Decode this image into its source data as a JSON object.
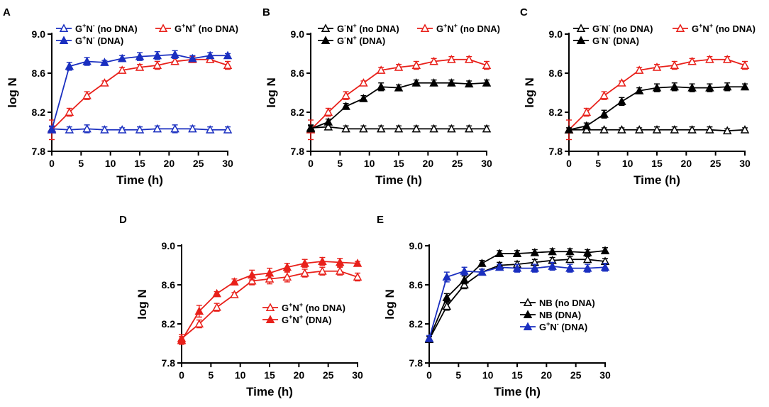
{
  "figure": {
    "panels": [
      "A",
      "B",
      "C",
      "D",
      "E"
    ]
  },
  "colors": {
    "blue": "#1a2fc0",
    "red": "#e8201a",
    "black": "#000000"
  },
  "chart_data": [
    {
      "panel": "A",
      "type": "line",
      "xlabel": "Time (h)",
      "ylabel": "log N",
      "xlim": [
        0,
        30
      ],
      "ylim": [
        7.8,
        9.0
      ],
      "xticks": [
        "0",
        "5",
        "10",
        "15",
        "20",
        "25",
        "30"
      ],
      "yticks": [
        "7.8",
        "8.2",
        "8.6",
        "9.0"
      ],
      "legend_position": "top",
      "x": [
        0,
        3,
        6,
        9,
        12,
        15,
        18,
        21,
        24,
        27,
        30
      ],
      "series": [
        {
          "name": "G+N- (no DNA)",
          "main": "G",
          "sup1": "+",
          "mid": "N",
          "sup2": "-",
          "suffix": " (no DNA)",
          "color": "#1a2fc0",
          "marker": "open-triangle",
          "values": [
            8.03,
            8.02,
            8.03,
            8.02,
            8.02,
            8.02,
            8.03,
            8.03,
            8.03,
            8.02,
            8.02
          ],
          "errors": [
            0.03,
            0.03,
            0.04,
            0.03,
            0.02,
            0.03,
            0.03,
            0.04,
            0.03,
            0.03,
            0.03
          ]
        },
        {
          "name": "G+N+ (no DNA)",
          "main": "G",
          "sup1": "+",
          "mid": "N",
          "sup2": "+",
          "suffix": " (no DNA)",
          "color": "#e8201a",
          "marker": "open-triangle",
          "values": [
            8.02,
            8.2,
            8.37,
            8.5,
            8.63,
            8.66,
            8.68,
            8.72,
            8.74,
            8.74,
            8.68
          ],
          "errors": [
            0.1,
            0.04,
            0.04,
            0.02,
            0.03,
            0.03,
            0.04,
            0.03,
            0.03,
            0.03,
            0.04
          ]
        },
        {
          "name": "G+N- (DNA)",
          "main": "G",
          "sup1": "+",
          "mid": "N",
          "sup2": "-",
          "suffix": " (DNA)",
          "color": "#1a2fc0",
          "marker": "filled-triangle",
          "values": [
            8.02,
            8.67,
            8.72,
            8.71,
            8.75,
            8.77,
            8.78,
            8.79,
            8.75,
            8.78,
            8.78
          ],
          "errors": [
            0.03,
            0.04,
            0.04,
            0.02,
            0.03,
            0.04,
            0.04,
            0.04,
            0.03,
            0.03,
            0.02
          ]
        }
      ]
    },
    {
      "panel": "B",
      "type": "line",
      "xlabel": "Time (h)",
      "ylabel": "log N",
      "xlim": [
        0,
        30
      ],
      "ylim": [
        7.8,
        9.0
      ],
      "xticks": [
        "0",
        "5",
        "10",
        "15",
        "20",
        "25",
        "30"
      ],
      "yticks": [
        "7.8",
        "8.2",
        "8.6",
        "9.0"
      ],
      "legend_position": "top",
      "x": [
        0,
        3,
        6,
        9,
        12,
        15,
        18,
        21,
        24,
        27,
        30
      ],
      "series": [
        {
          "name": "G-N+ (no DNA)",
          "main": "G",
          "sup1": "-",
          "mid": "N",
          "sup2": "+",
          "suffix": " (no DNA)",
          "color": "#000000",
          "marker": "open-triangle",
          "values": [
            8.04,
            8.05,
            8.03,
            8.03,
            8.03,
            8.03,
            8.03,
            8.03,
            8.03,
            8.03,
            8.03
          ],
          "errors": [
            0.03,
            0.03,
            0.03,
            0.03,
            0.03,
            0.03,
            0.03,
            0.03,
            0.03,
            0.03,
            0.03
          ]
        },
        {
          "name": "G+N+ (no DNA)",
          "main": "G",
          "sup1": "+",
          "mid": "N",
          "sup2": "+",
          "suffix": " (no DNA)",
          "color": "#e8201a",
          "marker": "open-triangle",
          "values": [
            8.02,
            8.2,
            8.37,
            8.5,
            8.63,
            8.66,
            8.68,
            8.72,
            8.74,
            8.74,
            8.68
          ],
          "errors": [
            0.1,
            0.04,
            0.04,
            0.02,
            0.03,
            0.03,
            0.04,
            0.03,
            0.03,
            0.03,
            0.04
          ]
        },
        {
          "name": "G-N+ (DNA)",
          "main": "G",
          "sup1": "-",
          "mid": "N",
          "sup2": "+",
          "suffix": " (DNA)",
          "color": "#000000",
          "marker": "filled-triangle",
          "values": [
            8.03,
            8.1,
            8.26,
            8.34,
            8.46,
            8.45,
            8.5,
            8.5,
            8.5,
            8.49,
            8.5
          ],
          "errors": [
            0.03,
            0.03,
            0.03,
            0.03,
            0.04,
            0.03,
            0.03,
            0.03,
            0.03,
            0.03,
            0.03
          ]
        }
      ]
    },
    {
      "panel": "C",
      "type": "line",
      "xlabel": "Time (h)",
      "ylabel": "log N",
      "xlim": [
        0,
        30
      ],
      "ylim": [
        7.8,
        9.0
      ],
      "xticks": [
        "0",
        "5",
        "10",
        "15",
        "20",
        "25",
        "30"
      ],
      "yticks": [
        "7.8",
        "8.2",
        "8.6",
        "9.0"
      ],
      "legend_position": "top",
      "x": [
        0,
        3,
        6,
        9,
        12,
        15,
        18,
        21,
        24,
        27,
        30
      ],
      "series": [
        {
          "name": "G-N- (no DNA)",
          "main": "G",
          "sup1": "-",
          "mid": "N",
          "sup2": "-",
          "suffix": " (no DNA)",
          "color": "#000000",
          "marker": "open-triangle",
          "values": [
            8.02,
            8.02,
            8.02,
            8.02,
            8.02,
            8.02,
            8.02,
            8.02,
            8.02,
            8.01,
            8.02
          ],
          "errors": [
            0.02,
            0.02,
            0.02,
            0.02,
            0.02,
            0.03,
            0.03,
            0.03,
            0.03,
            0.02,
            0.02
          ]
        },
        {
          "name": "G+N+ (no DNA)",
          "main": "G",
          "sup1": "+",
          "mid": "N",
          "sup2": "+",
          "suffix": " (no DNA)",
          "color": "#e8201a",
          "marker": "open-triangle",
          "values": [
            8.02,
            8.2,
            8.37,
            8.5,
            8.63,
            8.66,
            8.68,
            8.72,
            8.74,
            8.74,
            8.68
          ],
          "errors": [
            0.1,
            0.04,
            0.04,
            0.02,
            0.03,
            0.03,
            0.04,
            0.03,
            0.03,
            0.03,
            0.04
          ]
        },
        {
          "name": "G-N- (DNA)",
          "main": "G",
          "sup1": "-",
          "mid": "N",
          "sup2": "-",
          "suffix": " (DNA)",
          "color": "#000000",
          "marker": "filled-triangle",
          "values": [
            8.02,
            8.06,
            8.18,
            8.31,
            8.42,
            8.45,
            8.46,
            8.45,
            8.45,
            8.46,
            8.46
          ],
          "errors": [
            0.02,
            0.03,
            0.04,
            0.04,
            0.03,
            0.04,
            0.04,
            0.04,
            0.04,
            0.04,
            0.03
          ]
        }
      ]
    },
    {
      "panel": "D",
      "type": "line",
      "xlabel": "Time (h)",
      "ylabel": "log N",
      "xlim": [
        0,
        30
      ],
      "ylim": [
        7.8,
        9.0
      ],
      "xticks": [
        "0",
        "5",
        "10",
        "15",
        "20",
        "25",
        "30"
      ],
      "yticks": [
        "7.8",
        "8.2",
        "8.6",
        "9.0"
      ],
      "legend_position": "bottom-right",
      "x": [
        0,
        3,
        6,
        9,
        12,
        15,
        18,
        21,
        24,
        27,
        30
      ],
      "series": [
        {
          "name": "G+N+ (no DNA)",
          "main": "G",
          "sup1": "+",
          "mid": "N",
          "sup2": "+",
          "suffix": " (no DNA)",
          "color": "#e8201a",
          "marker": "open-triangle",
          "values": [
            8.05,
            8.2,
            8.37,
            8.5,
            8.64,
            8.66,
            8.68,
            8.72,
            8.74,
            8.74,
            8.68
          ],
          "errors": [
            0.04,
            0.04,
            0.04,
            0.02,
            0.04,
            0.05,
            0.05,
            0.04,
            0.04,
            0.04,
            0.04
          ]
        },
        {
          "name": "G+N+ (DNA)",
          "main": "G",
          "sup1": "+",
          "mid": "N",
          "sup2": "+",
          "suffix": " (DNA)",
          "color": "#e8201a",
          "marker": "filled-triangle",
          "values": [
            8.03,
            8.33,
            8.51,
            8.63,
            8.7,
            8.72,
            8.78,
            8.82,
            8.84,
            8.83,
            8.82
          ],
          "errors": [
            0.04,
            0.06,
            0.02,
            0.03,
            0.05,
            0.05,
            0.04,
            0.04,
            0.04,
            0.04,
            0.02
          ]
        }
      ]
    },
    {
      "panel": "E",
      "type": "line",
      "xlabel": "Time (h)",
      "ylabel": "log N",
      "xlim": [
        0,
        30
      ],
      "ylim": [
        7.8,
        9.0
      ],
      "xticks": [
        "0",
        "5",
        "10",
        "15",
        "20",
        "25",
        "30"
      ],
      "yticks": [
        "7.8",
        "8.2",
        "8.6",
        "9.0"
      ],
      "legend_position": "bottom-right",
      "x": [
        0,
        3,
        6,
        9,
        12,
        15,
        18,
        21,
        24,
        27,
        30
      ],
      "series": [
        {
          "name": "NB (no DNA)",
          "main": "NB",
          "sup1": "",
          "mid": "",
          "sup2": "",
          "suffix": " (no DNA)",
          "color": "#000000",
          "marker": "open-triangle",
          "values": [
            8.04,
            8.38,
            8.6,
            8.73,
            8.8,
            8.81,
            8.83,
            8.85,
            8.86,
            8.86,
            8.84
          ],
          "errors": [
            0.03,
            0.04,
            0.04,
            0.03,
            0.03,
            0.03,
            0.03,
            0.03,
            0.03,
            0.03,
            0.03
          ]
        },
        {
          "name": "NB (DNA)",
          "main": "NB",
          "sup1": "",
          "mid": "",
          "sup2": "",
          "suffix": " (DNA)",
          "color": "#000000",
          "marker": "filled-triangle",
          "values": [
            8.05,
            8.47,
            8.65,
            8.82,
            8.92,
            8.92,
            8.93,
            8.94,
            8.94,
            8.93,
            8.95
          ],
          "errors": [
            0.03,
            0.04,
            0.04,
            0.03,
            0.03,
            0.03,
            0.03,
            0.03,
            0.03,
            0.03,
            0.03
          ]
        },
        {
          "name": "G+N- (DNA)",
          "main": "G",
          "sup1": "+",
          "mid": "N",
          "sup2": "-",
          "suffix": " (DNA)",
          "color": "#1a2fc0",
          "marker": "filled-triangle",
          "values": [
            8.05,
            8.68,
            8.74,
            8.73,
            8.78,
            8.77,
            8.77,
            8.79,
            8.77,
            8.77,
            8.78
          ],
          "errors": [
            0.03,
            0.05,
            0.04,
            0.03,
            0.03,
            0.04,
            0.04,
            0.04,
            0.04,
            0.04,
            0.04
          ]
        }
      ]
    }
  ]
}
